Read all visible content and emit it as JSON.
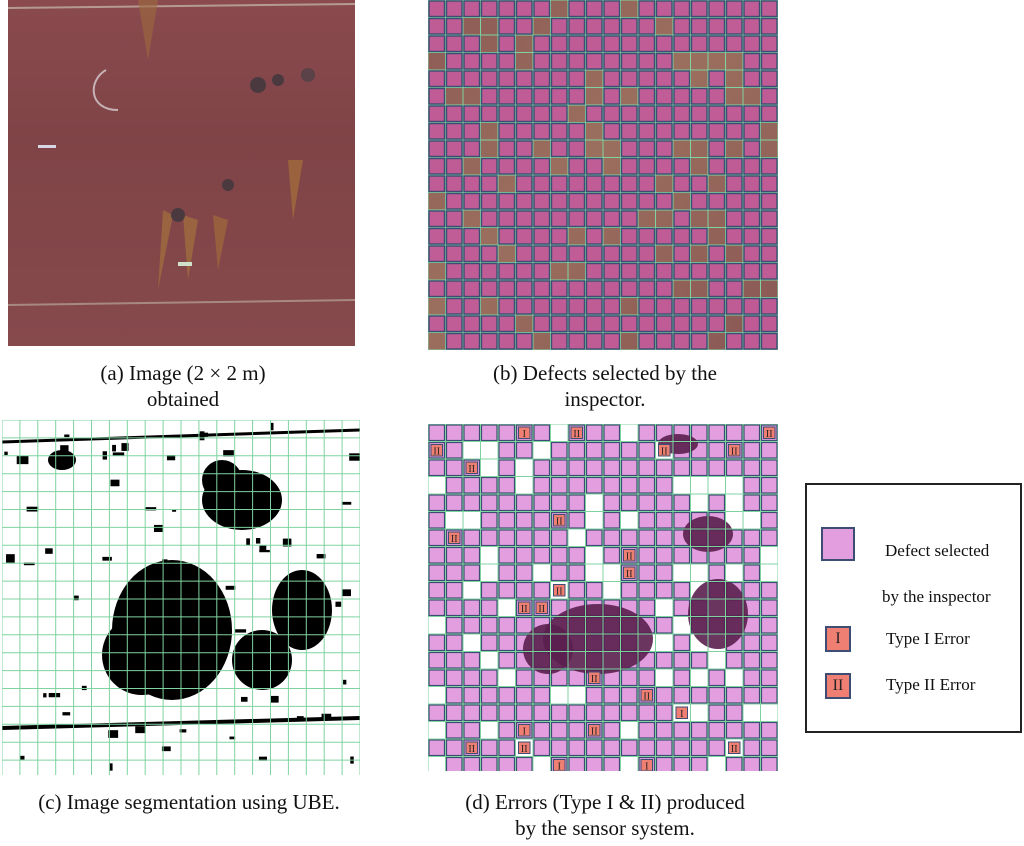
{
  "captions": {
    "a_line1": "(a) Image (2 × 2 m)",
    "a_line2": "obtained",
    "b_line1": "(b) Defects selected by the",
    "b_line2": "inspector.",
    "c_line1": "(c) Image segmentation using UBE.",
    "d_line1": "(d) Errors (Type I & II) produced",
    "d_line2": "by the sensor system."
  },
  "legend": {
    "defect_line1": "Defect selected",
    "defect_line2": "by the inspector",
    "type1_symbol": "I",
    "type1_label": "Type I Error",
    "type2_symbol": "II",
    "type2_label": "Type II Error"
  },
  "colors": {
    "defect_fill": "#e39ee0",
    "defect_border": "#3e4d73",
    "error_fill": "#ef7f72",
    "grid_line": "#7fd3a0",
    "segmentation_dark": "#000000",
    "overlay_dark": "#5a1f4e"
  },
  "errors": {
    "type1": [
      "I",
      "I",
      "I",
      "I",
      "I"
    ],
    "type2": [
      "II",
      "II",
      "II",
      "II",
      "II",
      "II",
      "II",
      "II",
      "II",
      "II",
      "II",
      "II",
      "II",
      "II",
      "II",
      "II",
      "II",
      "II",
      "II"
    ]
  }
}
